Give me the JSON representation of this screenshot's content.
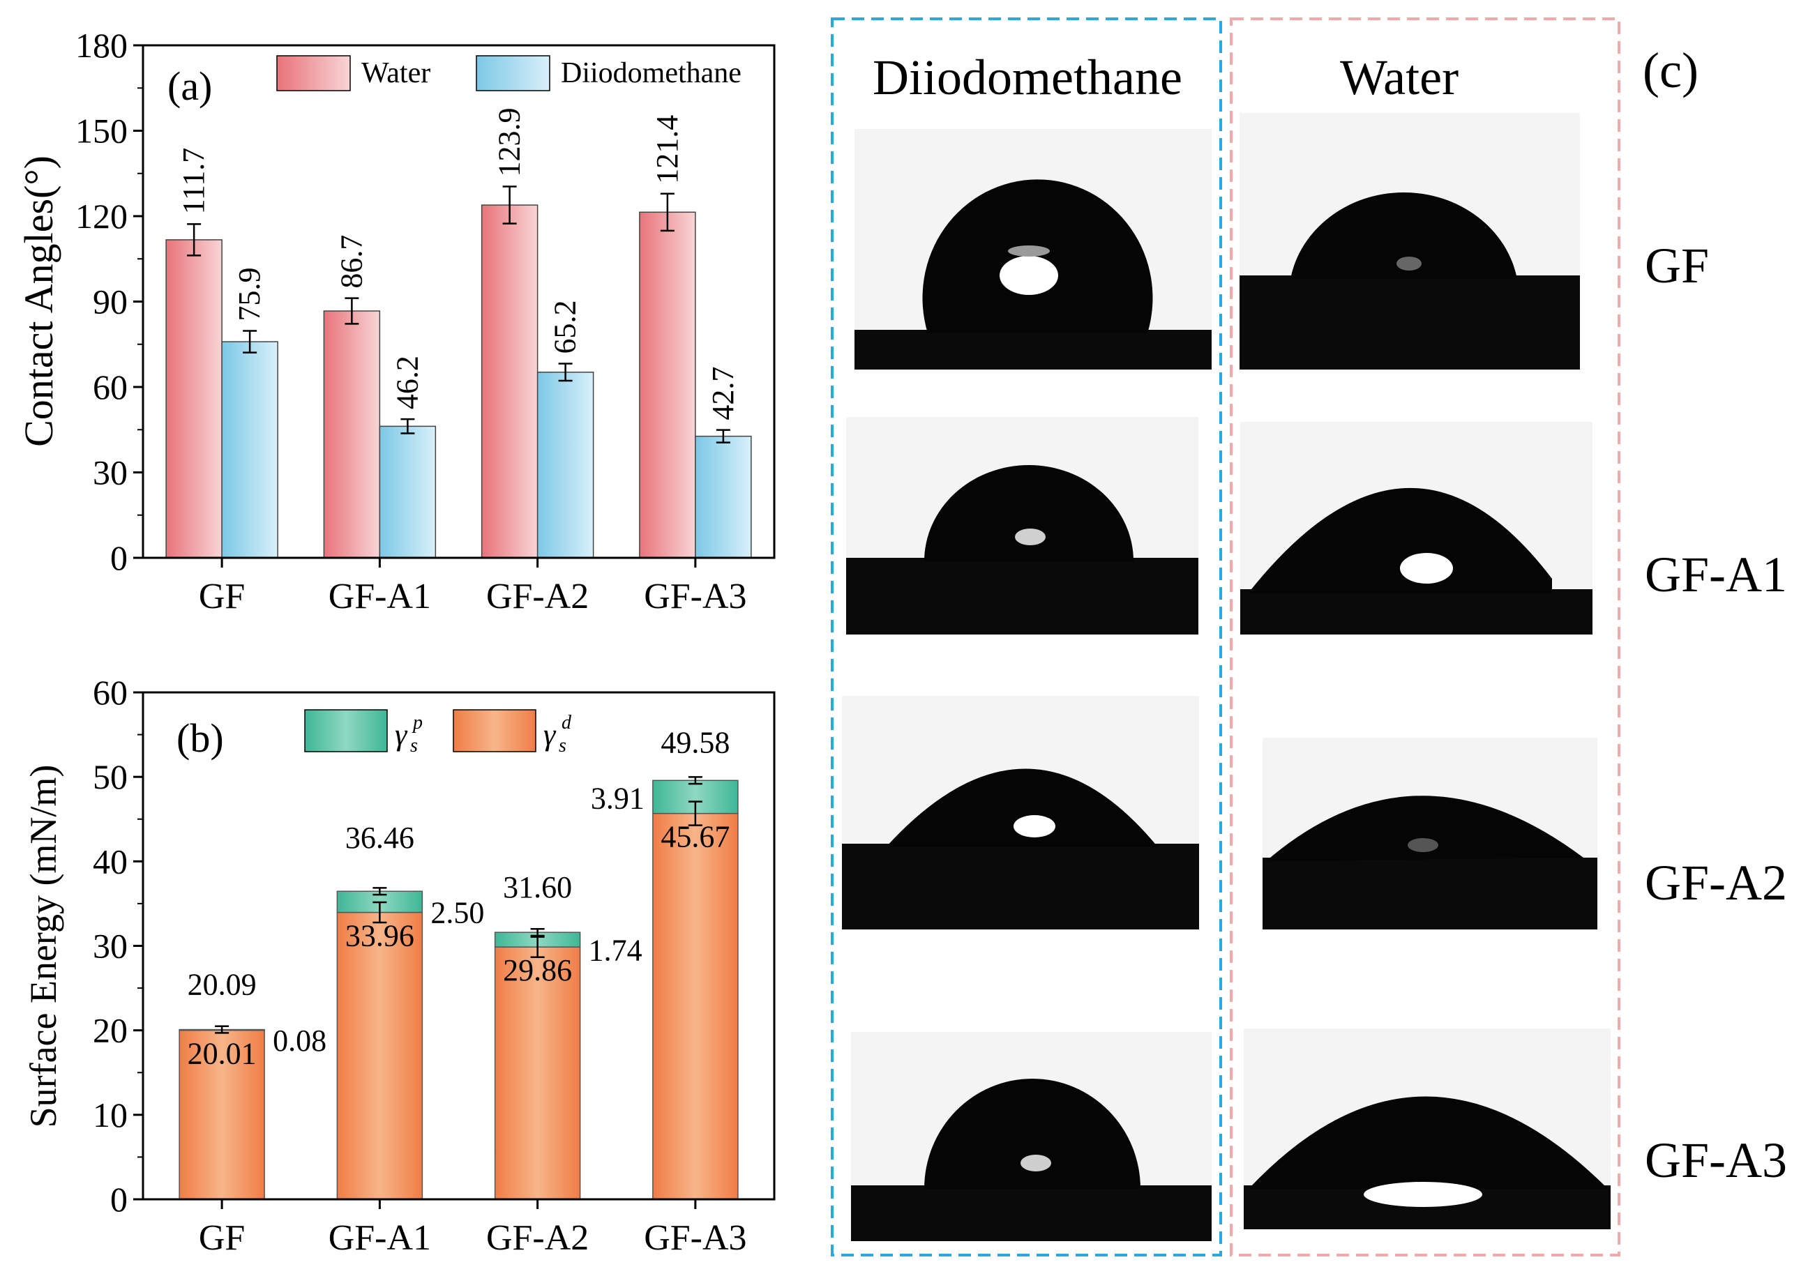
{
  "chart_data": [
    {
      "panel": "(a)",
      "type": "bar",
      "ylabel": "Contact Angles(°)",
      "xlabel": "",
      "ylim": [
        0,
        180
      ],
      "yticks": [
        0,
        30,
        60,
        90,
        120,
        150,
        180
      ],
      "categories": [
        "GF",
        "GF-A1",
        "GF-A2",
        "GF-A3"
      ],
      "legend": {
        "placement": "top",
        "entries": [
          "Water",
          "Diiodomethane"
        ]
      },
      "series": [
        {
          "name": "Water",
          "color": "#e8747a",
          "light": "#f8d5d6",
          "values": [
            111.7,
            86.7,
            123.9,
            121.4
          ],
          "errors": [
            5.5,
            4.5,
            6.5,
            6.5
          ],
          "labels": [
            "111.7",
            "86.7",
            "123.9",
            "121.4"
          ]
        },
        {
          "name": "Diiodomethane",
          "color": "#7cc8e6",
          "light": "#d9f0fa",
          "values": [
            75.9,
            46.2,
            65.2,
            42.7
          ],
          "errors": [
            3.8,
            2.5,
            3.0,
            2.2
          ],
          "labels": [
            "75.9",
            "46.2",
            "65.2",
            "42.7"
          ]
        }
      ]
    },
    {
      "panel": "(b)",
      "type": "bar",
      "stacked": true,
      "ylabel": "Surface Energy (mN/m)",
      "xlabel": "",
      "ylim": [
        0,
        60
      ],
      "yticks": [
        0,
        10,
        20,
        30,
        40,
        50,
        60
      ],
      "categories": [
        "GF",
        "GF-A1",
        "GF-A2",
        "GF-A3"
      ],
      "legend": {
        "placement": "top",
        "entries": [
          "γ_s^p",
          "γ_s^d"
        ]
      },
      "series": [
        {
          "name": "γ_s^d",
          "color": "#f07d46",
          "light": "#f7b589",
          "values": [
            20.01,
            33.96,
            29.86,
            45.67
          ],
          "errors": [
            0.4,
            1.2,
            1.2,
            1.4
          ],
          "labels": [
            "20.01",
            "33.96",
            "29.86",
            "45.67"
          ]
        },
        {
          "name": "γ_s^p",
          "color": "#3fb797",
          "light": "#8ed8c0",
          "values": [
            0.08,
            2.5,
            1.74,
            3.91
          ],
          "labels": [
            "0.08",
            "2.50",
            "1.74",
            "3.91"
          ]
        }
      ],
      "totals": {
        "values": [
          20.09,
          36.46,
          31.6,
          49.58
        ],
        "errors": [
          0.4,
          0.4,
          0.4,
          0.4
        ],
        "labels": [
          "20.09",
          "36.46",
          "31.60",
          "49.58"
        ]
      }
    }
  ],
  "panel_c": {
    "label": "(c)",
    "columns": [
      "Diiodomethane",
      "Water"
    ],
    "rows": [
      "GF",
      "GF-A1",
      "GF-A2",
      "GF-A3"
    ],
    "diiodomethane_border_color": "#2aa8e0",
    "water_border_color": "#f2a9a9"
  }
}
